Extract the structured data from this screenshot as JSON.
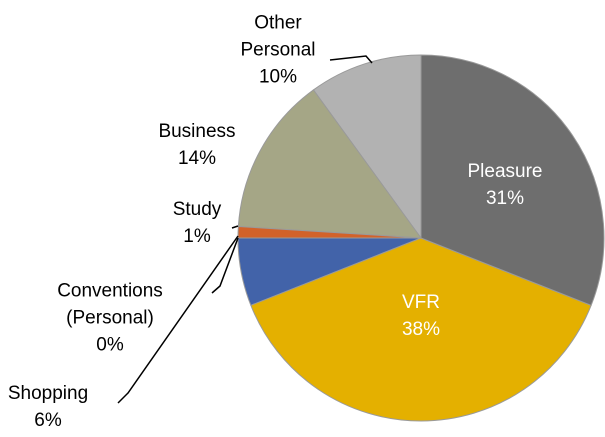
{
  "chart_data": {
    "type": "pie",
    "categories": [
      "Pleasure",
      "VFR",
      "Shopping",
      "Conventions (Personal)",
      "Study",
      "Business",
      "Other Personal"
    ],
    "values": [
      31,
      38,
      6,
      0,
      1,
      14,
      10
    ],
    "value_labels": [
      "31%",
      "38%",
      "6%",
      "0%",
      "1%",
      "14%",
      "10%"
    ],
    "colors": [
      "#6e6e6e",
      "#e4b000",
      "#4263a9",
      "#a6a6a6",
      "#d2622a",
      "#a5a686",
      "#b2b2b2"
    ]
  }
}
